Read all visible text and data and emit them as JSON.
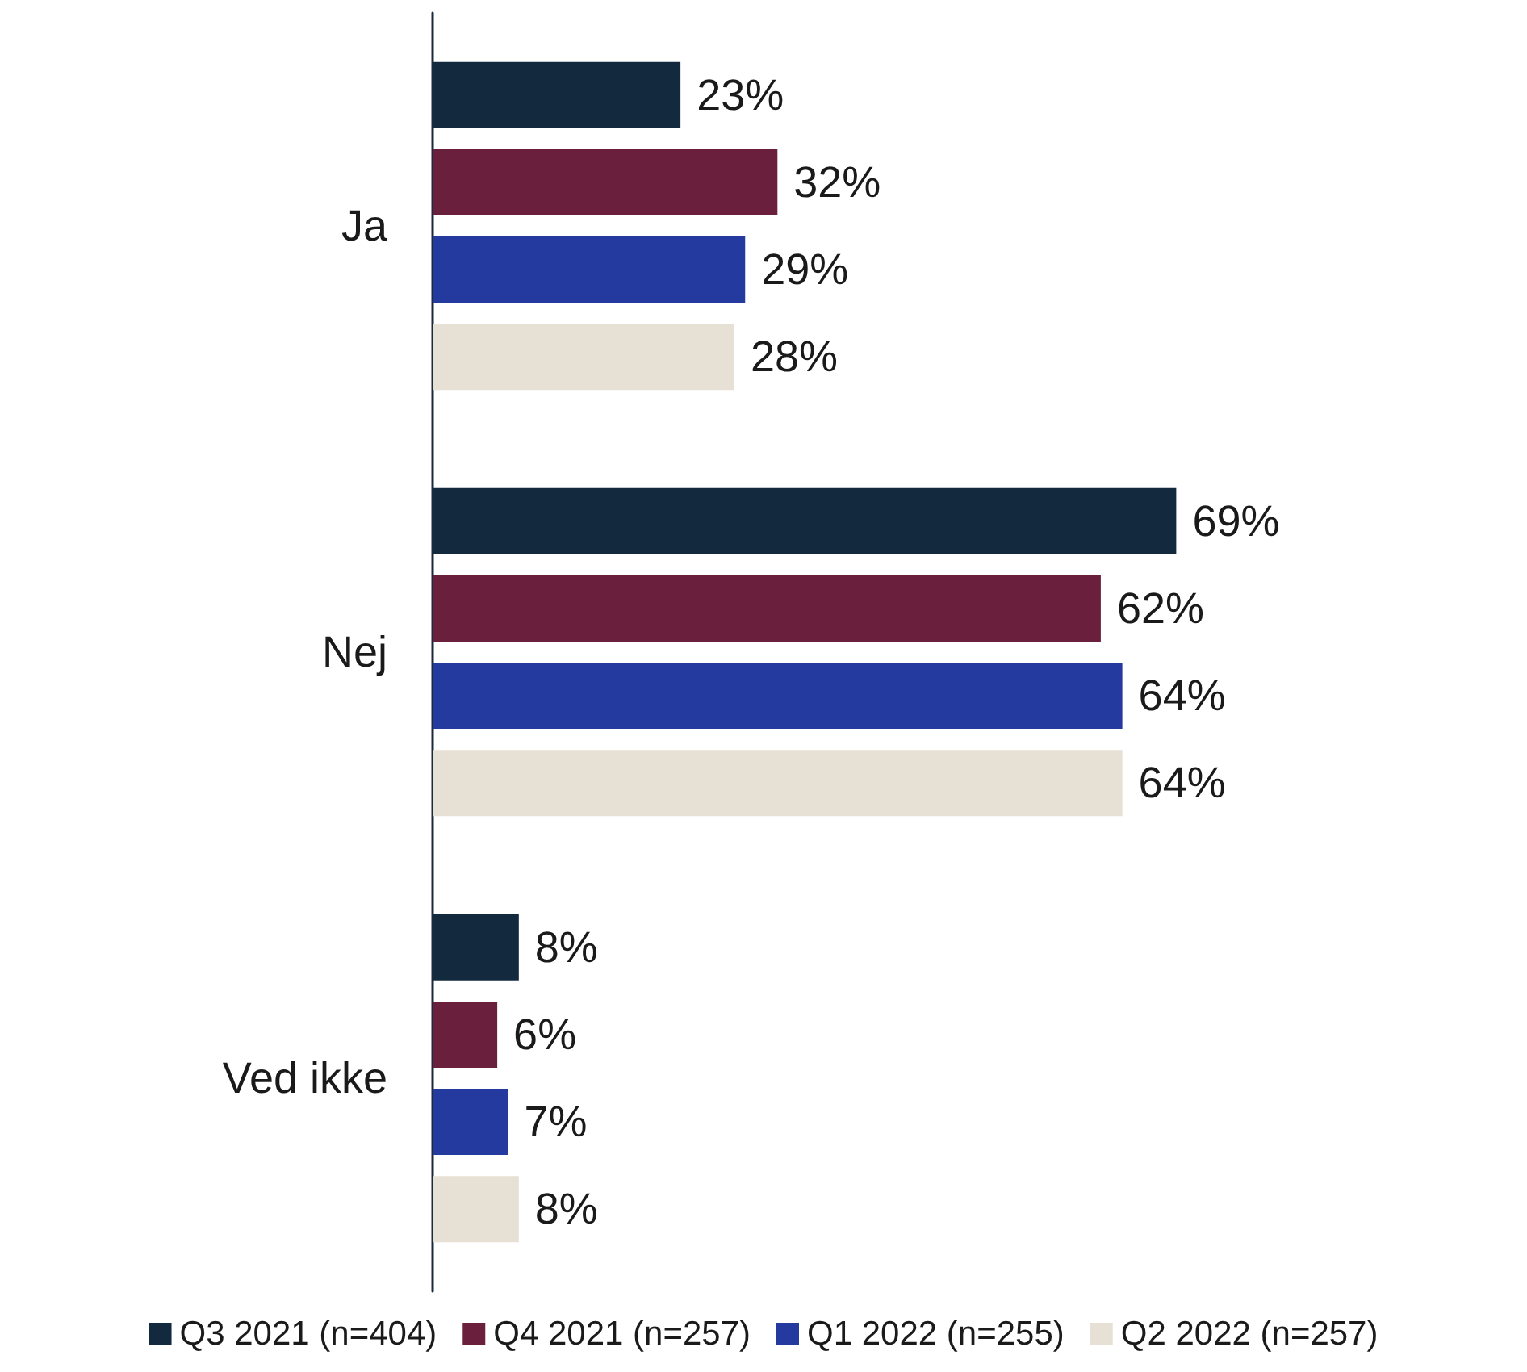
{
  "chart_data": {
    "type": "bar",
    "orientation": "horizontal",
    "categories": [
      "Ja",
      "Nej",
      "Ved ikke"
    ],
    "legend": "bottom",
    "tick_labels": "y",
    "series": [
      {
        "name": "Q3 2021 (n=404)",
        "color": "#132a3e",
        "values": [
          23,
          69,
          8
        ],
        "value_labels": [
          "23%",
          "69%",
          "8%"
        ]
      },
      {
        "name": "Q4 2021 (n=257)",
        "color": "#6a1f3d",
        "values": [
          32,
          62,
          6
        ],
        "value_labels": [
          "32%",
          "62%",
          "6%"
        ]
      },
      {
        "name": "Q1 2022 (n=255)",
        "color": "#253a9e",
        "values": [
          29,
          64,
          7
        ],
        "value_labels": [
          "29%",
          "64%",
          "7%"
        ]
      },
      {
        "name": "Q2 2022 (n=257)",
        "color": "#e7e0d5",
        "values": [
          28,
          64,
          8
        ],
        "value_labels": [
          "28%",
          "64%",
          "8%"
        ]
      }
    ]
  }
}
